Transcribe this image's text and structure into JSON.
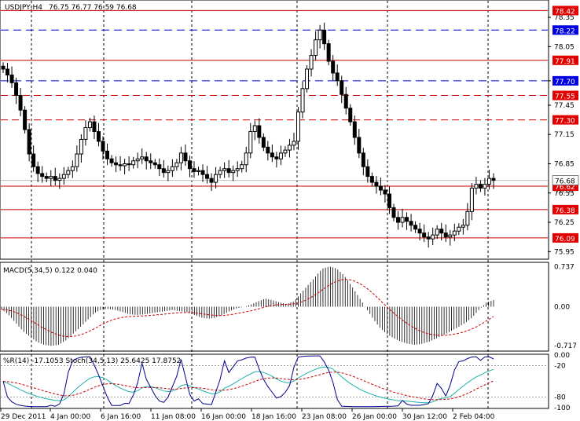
{
  "header": {
    "symbol": "USDJPY,H4",
    "ohlc": "76.75 76.77 76.59 76.68"
  },
  "colors": {
    "candle": "#000000",
    "red_level": "#cc0000",
    "blue_level": "#0000cc",
    "macd_signal": "#cc0000",
    "wpr": "#00008b",
    "stoch_main": "#20b2aa",
    "stoch_signal": "#cc0000",
    "label_red": "#e00000",
    "label_blue": "#0000e0",
    "current_label": "#ffffff"
  },
  "chart_data": [
    {
      "type": "candlestick",
      "title": "USDJPY,H4",
      "ylim": [
        75.88,
        78.52
      ],
      "y_ticks": [
        "78.35",
        "78.05",
        "77.70",
        "77.45",
        "77.15",
        "76.85",
        "76.55",
        "76.25",
        "75.95"
      ],
      "x_ticks": [
        "29 Dec 2011",
        "4 Jan 00:00",
        "6 Jan 16:00",
        "11 Jan 08:00",
        "16 Jan 00:00",
        "18 Jan 16:00",
        "23 Jan 08:00",
        "26 Jan 00:00",
        "30 Jan 12:00",
        "2 Feb 04:00"
      ],
      "current_price": "76.68",
      "current_price_secondary": "76.57",
      "levels": [
        {
          "value": 78.42,
          "label": "78.42",
          "style": "solid",
          "color": "red"
        },
        {
          "value": 78.22,
          "label": "78.22",
          "style": "dashed",
          "color": "blue"
        },
        {
          "value": 77.91,
          "label": "77.91",
          "style": "solid",
          "color": "red"
        },
        {
          "value": 77.7,
          "label": "77.70",
          "style": "dashed",
          "color": "blue"
        },
        {
          "value": 77.55,
          "label": "77.55",
          "style": "dashed",
          "color": "red"
        },
        {
          "value": 77.3,
          "label": "77.30",
          "style": "dashed",
          "color": "red"
        },
        {
          "value": 76.62,
          "label": "76.62",
          "style": "solid",
          "color": "red"
        },
        {
          "value": 76.38,
          "label": "76.38",
          "style": "solid",
          "color": "red"
        },
        {
          "value": 76.09,
          "label": "76.09",
          "style": "solid",
          "color": "red"
        }
      ],
      "close_path": [
        77.82,
        77.76,
        77.68,
        77.55,
        77.4,
        77.2,
        76.95,
        76.82,
        76.75,
        76.72,
        76.7,
        76.72,
        76.68,
        76.7,
        76.74,
        76.78,
        76.82,
        76.95,
        77.1,
        77.22,
        77.28,
        77.18,
        77.08,
        76.98,
        76.9,
        76.86,
        76.84,
        76.83,
        76.85,
        76.84,
        76.88,
        76.9,
        76.92,
        76.88,
        76.86,
        76.84,
        76.8,
        76.76,
        76.78,
        76.82,
        76.86,
        76.96,
        76.88,
        76.8,
        76.77,
        76.78,
        76.74,
        76.7,
        76.66,
        76.74,
        76.78,
        76.8,
        76.76,
        76.78,
        76.8,
        76.84,
        76.96,
        77.18,
        77.24,
        77.12,
        77.02,
        76.96,
        76.92,
        76.9,
        76.96,
        76.99,
        77.04,
        77.08,
        77.38,
        77.62,
        77.82,
        77.96,
        78.12,
        78.22,
        78.08,
        77.9,
        77.78,
        77.7,
        77.56,
        77.42,
        77.28,
        77.12,
        76.96,
        76.82,
        76.72,
        76.66,
        76.62,
        76.58,
        76.54,
        76.4,
        76.3,
        76.25,
        76.3,
        76.26,
        76.22,
        76.18,
        76.14,
        76.1,
        76.08,
        76.12,
        76.18,
        76.14,
        76.1,
        76.12,
        76.16,
        76.2,
        76.22,
        76.36,
        76.6,
        76.64,
        76.6,
        76.64,
        76.7,
        76.68
      ]
    },
    {
      "type": "bar",
      "title": "MACD(5,34,5) 0.122 0.040",
      "ylim": [
        -0.8,
        0.8
      ],
      "y_ticks": [
        "0.737",
        "0.00",
        "-0.717"
      ],
      "signal": "dashed red",
      "values_profile": [
        -0.05,
        -0.15,
        -0.3,
        -0.45,
        -0.55,
        -0.65,
        -0.7,
        -0.72,
        -0.7,
        -0.62,
        -0.5,
        -0.38,
        -0.25,
        -0.12,
        -0.05,
        -0.04,
        -0.06,
        -0.1,
        -0.14,
        -0.15,
        -0.14,
        -0.12,
        -0.1,
        -0.08,
        -0.06,
        -0.08,
        -0.1,
        -0.15,
        -0.2,
        -0.22,
        -0.2,
        -0.15,
        -0.08,
        -0.03,
        0.0,
        0.04,
        0.1,
        0.15,
        0.12,
        0.08,
        0.05,
        0.1,
        0.25,
        0.4,
        0.55,
        0.7,
        0.74,
        0.7,
        0.58,
        0.4,
        0.2,
        0.0,
        -0.2,
        -0.38,
        -0.5,
        -0.58,
        -0.64,
        -0.68,
        -0.7,
        -0.68,
        -0.64,
        -0.58,
        -0.52,
        -0.45,
        -0.38,
        -0.3,
        -0.2,
        -0.05,
        0.08,
        0.12
      ]
    },
    {
      "type": "line",
      "title": "%R(14) -17.1053 Stoch(34,5,13) 25.6425 17.8752",
      "ylim": [
        -100,
        0
      ],
      "y_ticks": [
        "0.00",
        "-20",
        "-80",
        "-100"
      ]
    }
  ]
}
